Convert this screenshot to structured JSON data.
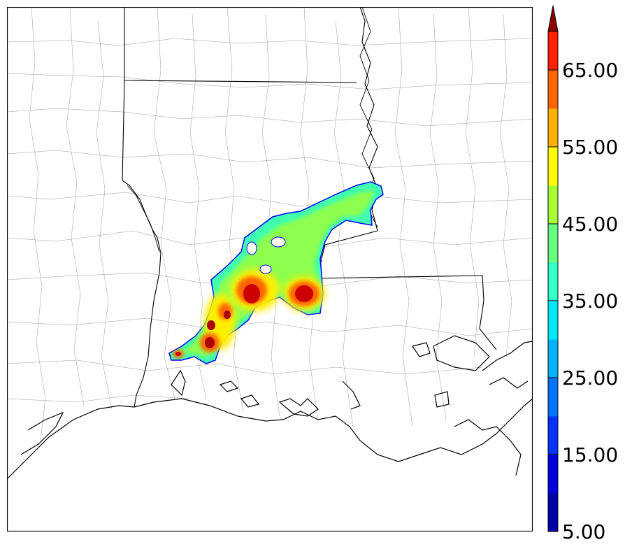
{
  "map": {
    "region": "Louisiana / East Texas / Mississippi",
    "basemap": "state and county boundaries with coastline",
    "colormap": "jet",
    "field_shape": "northeast-oriented precipitation/reflectivity band"
  },
  "colorbar": {
    "min": 5,
    "max": 70,
    "step": 5,
    "extend": "max",
    "tick_values": [
      5,
      15,
      25,
      35,
      45,
      55,
      65
    ],
    "tick_labels": [
      "5.00",
      "15.00",
      "25.00",
      "35.00",
      "45.00",
      "55.00",
      "65.00"
    ],
    "colors": [
      "#0000a8",
      "#0000e0",
      "#0033ff",
      "#0073ff",
      "#00b3ff",
      "#00e8ff",
      "#33ffcc",
      "#66ff80",
      "#a6ff33",
      "#ffff00",
      "#ffb300",
      "#ff6600",
      "#ff2200",
      "#c80000",
      "#8b0000"
    ]
  }
}
